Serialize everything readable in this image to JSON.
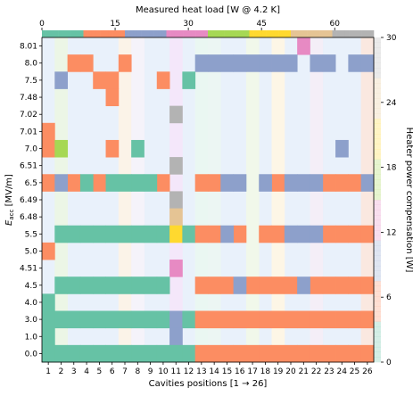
{
  "chart_data": {
    "type": "heatmap",
    "xlabel": "Cavities positions [1 → 26]",
    "ylabel_main": "E",
    "ylabel_sub": "acc",
    "ylabel_unit": " [MV/m]",
    "top_xlabel": "Measured heat load [W @ 4.2 K]",
    "right_ylabel": "Heater power compensation [W]",
    "x_tick_labels": [
      "1",
      "2",
      "3",
      "4",
      "5",
      "6",
      "7",
      "8",
      "9",
      "10",
      "11",
      "12",
      "13",
      "14",
      "15",
      "16",
      "17",
      "18",
      "19",
      "20",
      "21",
      "22",
      "23",
      "24",
      "25",
      "26"
    ],
    "top_ticks": [
      0,
      15,
      30,
      45,
      60
    ],
    "top_range": [
      0,
      68
    ],
    "right_ticks": [
      0,
      6,
      12,
      18,
      24,
      30
    ],
    "right_range": [
      0,
      30
    ],
    "y_categories": [
      "8.01",
      "8.0",
      "7.5",
      "7.48",
      "7.02",
      "7.01",
      "7.0",
      "6.51",
      "6.5",
      "6.49",
      "6.48",
      "5.5",
      "5.0",
      "4.51",
      "4.5",
      "4.0",
      "3.0",
      "1.0",
      "0.0"
    ],
    "colors": {
      "G": "#66c2a5",
      "O": "#fc8d62",
      "B": "#8da0cb",
      "P": "#e78ac3",
      "L": "#a6d854",
      "Y": "#ffd92f",
      "T": "#e5c494",
      "A": "#b3b3b3",
      "background": "#e9f1fb"
    },
    "top_colorbar": [
      "G",
      "G",
      "G",
      "G",
      "G",
      "G",
      "G",
      "G",
      "G",
      "G",
      "O",
      "O",
      "O",
      "O",
      "O",
      "O",
      "O",
      "O",
      "O",
      "O",
      "B",
      "B",
      "B",
      "B",
      "B",
      "B",
      "B",
      "B",
      "B",
      "B",
      "P",
      "P",
      "P",
      "P",
      "P",
      "P",
      "P",
      "P",
      "P",
      "P",
      "L",
      "L",
      "L",
      "L",
      "L",
      "L",
      "L",
      "L",
      "L",
      "L",
      "Y",
      "Y",
      "Y",
      "Y",
      "Y",
      "Y",
      "Y",
      "Y",
      "Y",
      "Y",
      "T",
      "T",
      "T",
      "T",
      "T",
      "T",
      "T",
      "T",
      "T",
      "T",
      "A",
      "A",
      "A",
      "A",
      "A",
      "A",
      "A",
      "A",
      "A",
      "A"
    ],
    "grid_cells": [
      ".............................................................................................P......................",
      "..................OOOOOO...O.....................BBBBBBBBBBBBBBBBBBBBBBBBBBBBBBB...BBBBBBBB..BBB",
      "...B.............OO..........O.......................................O.G..........................",
      "..............................O...................................................................",
      ".................................................A.................................................",
      "O...................................................................................................",
      "O..L..........O......G....................................................................B.......",
      ".................................................A.................................................",
      "OBOGOOGGGGGGGGGGGGOG.OOOOOOBBBBBBBO.BB.BBBBBBBB..OOOOOO......B",
      ".................................................A.................................................",
      ".................................................T.................................................",
      "..GGGGGGGGGGGGGGGGGGGGGGGGGGGYGOOOOOBBOO.OOOOOOBBBBBOOOOO",
      "O...................................................................................................",
      ".................................................P.................................................",
      "..GGGGGGGGGGGGGGGGGGGGGGGGGG..OOOOOOOBOOOOOOOOOOOBOOOOOOOOO",
      "GGG......................................................................................................",
      "GGGGGGGGGGGGGGGGGGGGGGGGGGGBBOOOOOOOOOOOOOOOOOOOOOOOOOOOOOOOOO",
      ".......................................................................................................",
      "GGGGGGGGGGGGGGGGGGGGGGGGGGG.OOOOOOOOOOOOOOOOOOOOOOOOOOOOOOOOOO"
    ],
    "cells": [
      {
        "row": "8.01",
        "cols": [
          21
        ],
        "c": "P"
      },
      {
        "row": "8.0",
        "cols": [
          3,
          4,
          7
        ],
        "c": "O"
      },
      {
        "row": "8.0",
        "cols": [
          13,
          14,
          15,
          16,
          17,
          18,
          19,
          20,
          22,
          23,
          25,
          26
        ],
        "c": "B"
      },
      {
        "row": "7.5",
        "cols": [
          2
        ],
        "c": "B"
      },
      {
        "row": "7.5",
        "cols": [
          5,
          6,
          10
        ],
        "c": "O"
      },
      {
        "row": "7.5",
        "cols": [
          12
        ],
        "c": "G"
      },
      {
        "row": "7.48",
        "cols": [
          6
        ],
        "c": "O"
      },
      {
        "row": "7.02",
        "cols": [
          11
        ],
        "c": "A"
      },
      {
        "row": "7.01",
        "cols": [
          1
        ],
        "c": "O"
      },
      {
        "row": "7.0",
        "cols": [
          1,
          6
        ],
        "c": "O"
      },
      {
        "row": "7.0",
        "cols": [
          2
        ],
        "c": "L"
      },
      {
        "row": "7.0",
        "cols": [
          8
        ],
        "c": "G"
      },
      {
        "row": "7.0",
        "cols": [
          24
        ],
        "c": "B"
      },
      {
        "row": "6.51",
        "cols": [
          11
        ],
        "c": "A"
      },
      {
        "row": "6.5",
        "cols": [
          1,
          3,
          5,
          10
        ],
        "c": "O"
      },
      {
        "row": "6.5",
        "cols": [
          2
        ],
        "c": "B"
      },
      {
        "row": "6.5",
        "cols": [
          4,
          6,
          7,
          8,
          9
        ],
        "c": "G"
      },
      {
        "row": "6.5",
        "cols": [
          13,
          14,
          19,
          23,
          24,
          25
        ],
        "c": "O"
      },
      {
        "row": "6.5",
        "cols": [
          15,
          16,
          18,
          20,
          21,
          22,
          26
        ],
        "c": "B"
      },
      {
        "row": "6.49",
        "cols": [
          11
        ],
        "c": "A"
      },
      {
        "row": "6.48",
        "cols": [
          11
        ],
        "c": "T"
      },
      {
        "row": "5.5",
        "cols": [
          2,
          3,
          4,
          5,
          6,
          7,
          8,
          9,
          10
        ],
        "c": "G"
      },
      {
        "row": "5.5",
        "cols": [
          11
        ],
        "c": "Y"
      },
      {
        "row": "5.5",
        "cols": [
          12
        ],
        "c": "G"
      },
      {
        "row": "5.5",
        "cols": [
          13,
          14,
          16,
          18,
          19,
          23,
          24,
          25,
          26
        ],
        "c": "O"
      },
      {
        "row": "5.5",
        "cols": [
          15,
          20,
          21,
          22
        ],
        "c": "B"
      },
      {
        "row": "5.0",
        "cols": [
          1
        ],
        "c": "O"
      },
      {
        "row": "4.51",
        "cols": [
          11
        ],
        "c": "P"
      },
      {
        "row": "4.5",
        "cols": [
          2,
          3,
          4,
          5,
          6,
          7,
          8,
          9,
          10
        ],
        "c": "G"
      },
      {
        "row": "4.5",
        "cols": [
          13,
          14,
          15,
          17,
          18,
          19,
          20,
          22,
          23,
          24,
          25,
          26
        ],
        "c": "O"
      },
      {
        "row": "4.5",
        "cols": [
          16,
          21
        ],
        "c": "B"
      },
      {
        "row": "4.0",
        "cols": [
          1
        ],
        "c": "G"
      },
      {
        "row": "3.0",
        "cols": [
          1,
          2,
          3,
          4,
          5,
          6,
          7,
          8,
          9,
          10
        ],
        "c": "G"
      },
      {
        "row": "3.0",
        "cols": [
          11
        ],
        "c": "B"
      },
      {
        "row": "3.0",
        "cols": [
          12
        ],
        "c": "G"
      },
      {
        "row": "3.0",
        "cols": [
          13,
          14,
          15,
          16,
          17,
          18,
          19,
          20,
          21,
          22,
          23,
          24,
          25,
          26
        ],
        "c": "O"
      },
      {
        "row": "1.0",
        "cols": [
          1
        ],
        "c": "G"
      },
      {
        "row": "1.0",
        "cols": [
          11
        ],
        "c": "B"
      },
      {
        "row": "0.0",
        "cols": [
          1,
          2,
          3,
          4,
          5,
          6,
          7,
          8,
          9,
          10,
          11,
          12
        ],
        "c": "G"
      },
      {
        "row": "0.0",
        "cols": [
          13,
          14,
          15,
          16,
          17,
          18,
          19,
          20,
          21,
          22,
          23,
          24,
          25,
          26
        ],
        "c": "O"
      }
    ],
    "pale_tints": [
      {
        "col": 2,
        "color": "#ecf6e6"
      },
      {
        "col": 7,
        "color": "#fbf3e8"
      },
      {
        "col": 8,
        "color": "#f5f3fa"
      },
      {
        "col": 11,
        "color": "#f4e7fa"
      },
      {
        "col": 13,
        "color": "#eaf7f2"
      },
      {
        "col": 14,
        "color": "#ecf6f3"
      },
      {
        "col": 17,
        "color": "#f1f8ea"
      },
      {
        "col": 19,
        "color": "#fdf6e6"
      },
      {
        "col": 22,
        "color": "#f4eef7"
      },
      {
        "col": 26,
        "color": "#fae8e0"
      }
    ],
    "grid": false,
    "legend": "none"
  }
}
